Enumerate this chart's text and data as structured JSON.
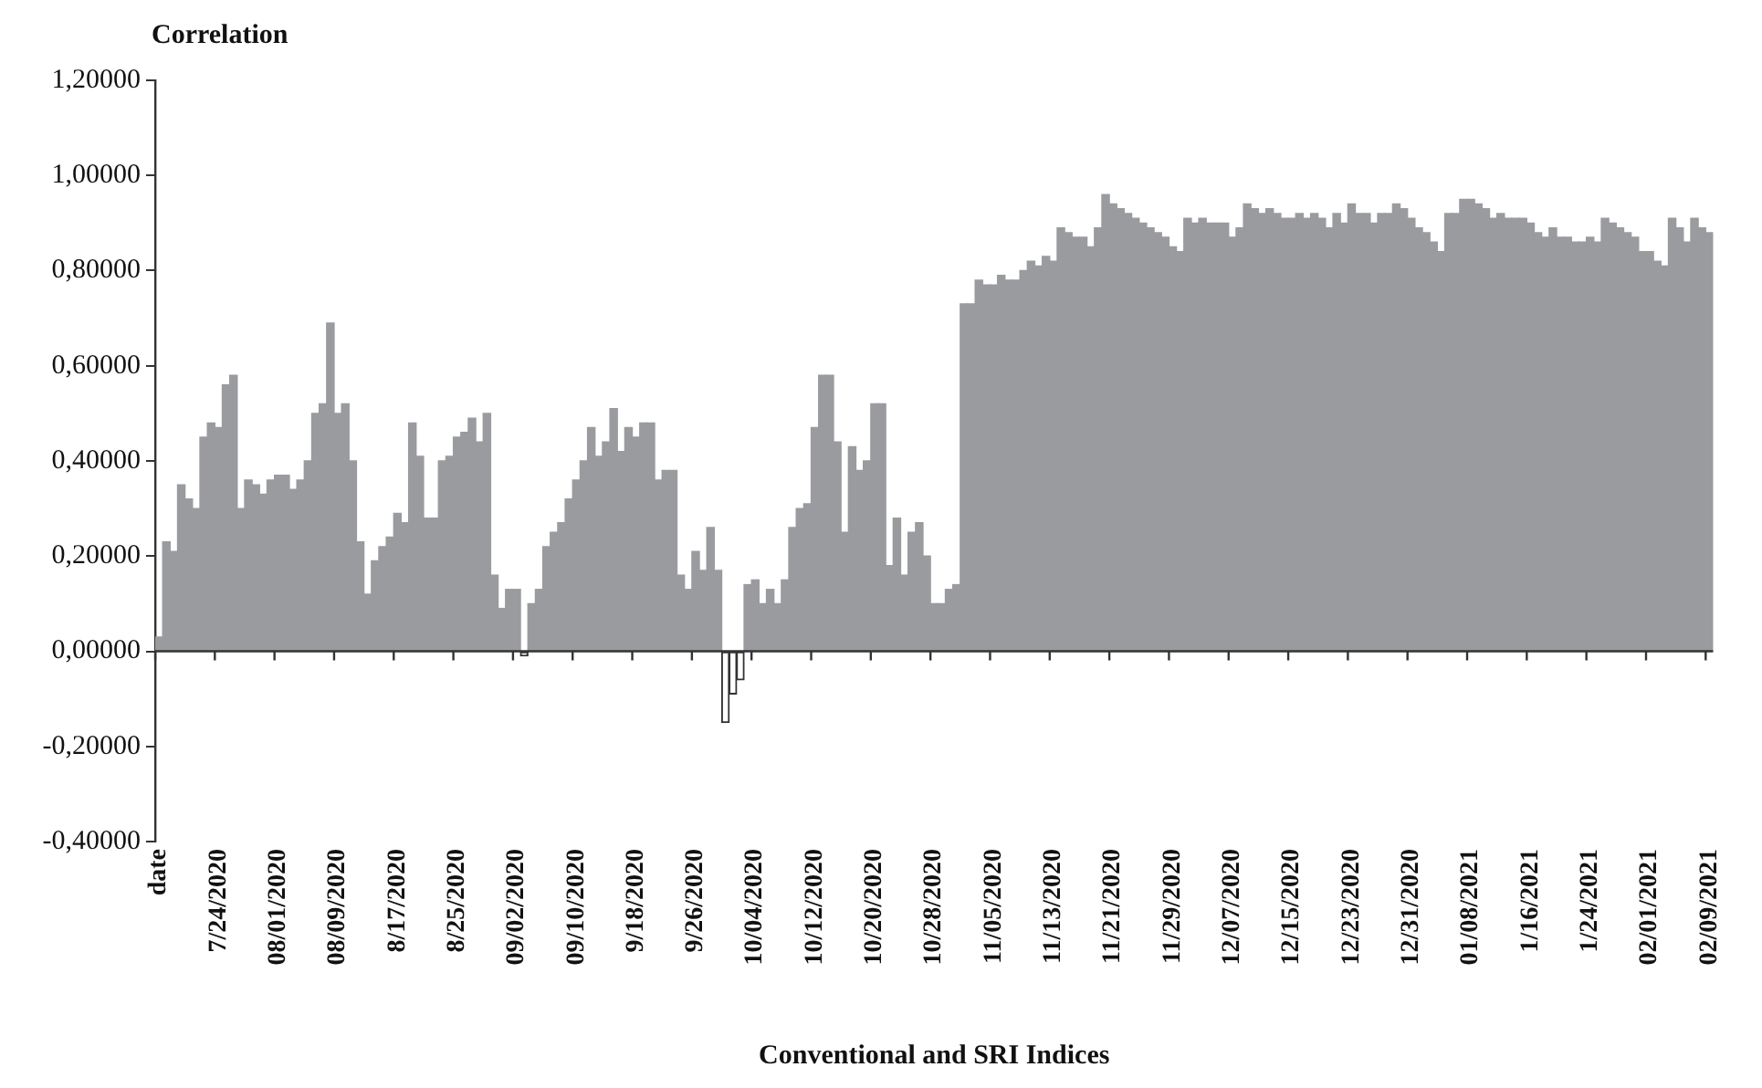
{
  "chart_data": {
    "type": "bar",
    "ylabel": "Correlation",
    "xlabel": "Conventional and SRI Indices",
    "categories": [
      "date",
      null,
      null,
      null,
      null,
      null,
      null,
      null,
      "7/24/2020",
      null,
      null,
      null,
      null,
      null,
      null,
      null,
      "08/01/2020",
      null,
      null,
      null,
      null,
      null,
      null,
      null,
      "08/09/2020",
      null,
      null,
      null,
      null,
      null,
      null,
      null,
      "8/17/2020",
      null,
      null,
      null,
      null,
      null,
      null,
      null,
      "8/25/2020",
      null,
      null,
      null,
      null,
      null,
      null,
      null,
      "09/02/2020",
      null,
      null,
      null,
      null,
      null,
      null,
      null,
      "09/10/2020",
      null,
      null,
      null,
      null,
      null,
      null,
      null,
      "9/18/2020",
      null,
      null,
      null,
      null,
      null,
      null,
      null,
      "9/26/2020",
      null,
      null,
      null,
      null,
      null,
      null,
      null,
      "10/04/2020",
      null,
      null,
      null,
      null,
      null,
      null,
      null,
      "10/12/2020",
      null,
      null,
      null,
      null,
      null,
      null,
      null,
      "10/20/2020",
      null,
      null,
      null,
      null,
      null,
      null,
      null,
      "10/28/2020",
      null,
      null,
      null,
      null,
      null,
      null,
      null,
      "11/05/2020",
      null,
      null,
      null,
      null,
      null,
      null,
      null,
      "11/13/2020",
      null,
      null,
      null,
      null,
      null,
      null,
      null,
      "11/21/2020",
      null,
      null,
      null,
      null,
      null,
      null,
      null,
      "11/29/2020",
      null,
      null,
      null,
      null,
      null,
      null,
      null,
      "12/07/2020",
      null,
      null,
      null,
      null,
      null,
      null,
      null,
      "12/15/2020",
      null,
      null,
      null,
      null,
      null,
      null,
      null,
      "12/23/2020",
      null,
      null,
      null,
      null,
      null,
      null,
      null,
      "12/31/2020",
      null,
      null,
      null,
      null,
      null,
      null,
      null,
      "01/08/2021",
      null,
      null,
      null,
      null,
      null,
      null,
      null,
      "1/16/2021",
      null,
      null,
      null,
      null,
      null,
      null,
      null,
      "1/24/2021",
      null,
      null,
      null,
      null,
      null,
      null,
      null,
      "02/01/2021",
      null,
      null,
      null,
      null,
      null,
      null,
      null,
      "02/09/2021"
    ],
    "values": [
      0.03,
      0.23,
      0.21,
      0.35,
      0.32,
      0.3,
      0.45,
      0.48,
      0.47,
      0.56,
      0.58,
      0.3,
      0.36,
      0.35,
      0.33,
      0.36,
      0.37,
      0.37,
      0.34,
      0.36,
      0.4,
      0.5,
      0.52,
      0.69,
      0.5,
      0.52,
      0.4,
      0.23,
      0.12,
      0.19,
      0.22,
      0.24,
      0.29,
      0.27,
      0.48,
      0.41,
      0.28,
      0.28,
      0.4,
      0.41,
      0.45,
      0.46,
      0.49,
      0.44,
      0.5,
      0.16,
      0.09,
      0.13,
      0.13,
      -0.01,
      0.1,
      0.13,
      0.22,
      0.25,
      0.27,
      0.32,
      0.36,
      0.4,
      0.47,
      0.41,
      0.44,
      0.51,
      0.42,
      0.47,
      0.45,
      0.48,
      0.48,
      0.36,
      0.38,
      0.38,
      0.16,
      0.13,
      0.21,
      0.17,
      0.26,
      0.17,
      -0.15,
      -0.09,
      -0.06,
      0.14,
      0.15,
      0.1,
      0.13,
      0.1,
      0.15,
      0.26,
      0.3,
      0.31,
      0.47,
      0.58,
      0.58,
      0.44,
      0.25,
      0.43,
      0.38,
      0.4,
      0.52,
      0.52,
      0.18,
      0.28,
      0.16,
      0.25,
      0.27,
      0.2,
      0.1,
      0.1,
      0.13,
      0.14,
      0.73,
      0.73,
      0.78,
      0.77,
      0.77,
      0.79,
      0.78,
      0.78,
      0.8,
      0.82,
      0.81,
      0.83,
      0.82,
      0.89,
      0.88,
      0.87,
      0.87,
      0.85,
      0.89,
      0.96,
      0.94,
      0.93,
      0.92,
      0.91,
      0.9,
      0.89,
      0.88,
      0.87,
      0.85,
      0.84,
      0.91,
      0.9,
      0.91,
      0.9,
      0.9,
      0.9,
      0.87,
      0.89,
      0.94,
      0.93,
      0.92,
      0.93,
      0.92,
      0.91,
      0.91,
      0.92,
      0.91,
      0.92,
      0.91,
      0.89,
      0.92,
      0.9,
      0.94,
      0.92,
      0.92,
      0.9,
      0.92,
      0.92,
      0.94,
      0.93,
      0.91,
      0.89,
      0.88,
      0.86,
      0.84,
      0.92,
      0.92,
      0.95,
      0.95,
      0.94,
      0.93,
      0.91,
      0.92,
      0.91,
      0.91,
      0.91,
      0.9,
      0.88,
      0.87,
      0.89,
      0.87,
      0.87,
      0.86,
      0.86,
      0.87,
      0.86,
      0.91,
      0.9,
      0.89,
      0.88,
      0.87,
      0.84,
      0.84,
      0.82,
      0.81,
      0.91,
      0.89,
      0.86,
      0.91,
      0.89,
      0.88
    ],
    "colors": [
      "#9a9b9f",
      "#9a9b9f",
      "#9a9b9f",
      "#9a9b9f",
      "#9a9b9f",
      "#9a9b9f",
      "#9a9b9f",
      "#9a9b9f",
      "#9a9b9f",
      "#9a9b9f",
      "#9a9b9f",
      "#9a9b9f",
      "#9a9b9f",
      "#9a9b9f",
      "#9a9b9f",
      "#9a9b9f",
      "#9a9b9f",
      "#9a9b9f",
      "#9a9b9f",
      "#9a9b9f",
      "#9a9b9f",
      "#9a9b9f",
      "#9a9b9f",
      "#9a9b9f",
      "#9a9b9f",
      "#9a9b9f",
      "#9a9b9f",
      "#9a9b9f",
      "#9a9b9f",
      "#9a9b9f",
      "#9a9b9f",
      "#9a9b9f",
      "#9a9b9f",
      "#9a9b9f",
      "#9a9b9f",
      "#9a9b9f",
      "#9a9b9f",
      "#9a9b9f",
      "#9a9b9f",
      "#9a9b9f",
      "#9a9b9f",
      "#9a9b9f",
      "#9a9b9f",
      "#9a9b9f",
      "#9a9b9f",
      "#9a9b9f",
      "#9a9b9f",
      "#9a9b9f",
      "#9a9b9f",
      "#ffffff",
      "#9a9b9f",
      "#9a9b9f",
      "#9a9b9f",
      "#9a9b9f",
      "#9a9b9f",
      "#9a9b9f",
      "#9a9b9f",
      "#9a9b9f",
      "#9a9b9f",
      "#9a9b9f",
      "#9a9b9f",
      "#9a9b9f",
      "#9a9b9f",
      "#9a9b9f",
      "#9a9b9f",
      "#9a9b9f",
      "#9a9b9f",
      "#9a9b9f",
      "#9a9b9f",
      "#9a9b9f",
      "#9a9b9f",
      "#9a9b9f",
      "#9a9b9f",
      "#9a9b9f",
      "#9a9b9f",
      "#9a9b9f",
      "#ffffff",
      "#ffffff",
      "#ffffff",
      "#9a9b9f",
      "#9a9b9f",
      "#9a9b9f",
      "#9a9b9f",
      "#9a9b9f",
      "#9a9b9f",
      "#9a9b9f",
      "#9a9b9f",
      "#9a9b9f",
      "#9a9b9f",
      "#9a9b9f",
      "#9a9b9f",
      "#9a9b9f",
      "#9a9b9f",
      "#9a9b9f",
      "#9a9b9f",
      "#9a9b9f",
      "#9a9b9f",
      "#9a9b9f",
      "#9a9b9f",
      "#9a9b9f",
      "#9a9b9f",
      "#9a9b9f",
      "#9a9b9f",
      "#9a9b9f",
      "#9a9b9f",
      "#9a9b9f",
      "#9a9b9f",
      "#9a9b9f",
      "#9a9b9f",
      "#9a9b9f",
      "#9a9b9f",
      "#9a9b9f",
      "#9a9b9f",
      "#9a9b9f",
      "#9a9b9f",
      "#9a9b9f",
      "#9a9b9f",
      "#9a9b9f",
      "#9a9b9f",
      "#9a9b9f",
      "#9a9b9f",
      "#9a9b9f",
      "#9a9b9f",
      "#9a9b9f",
      "#9a9b9f",
      "#9a9b9f",
      "#9a9b9f",
      "#9a9b9f",
      "#9a9b9f",
      "#9a9b9f",
      "#9a9b9f",
      "#9a9b9f",
      "#9a9b9f",
      "#9a9b9f",
      "#9a9b9f",
      "#9a9b9f",
      "#9a9b9f",
      "#9a9b9f",
      "#9a9b9f",
      "#9a9b9f",
      "#9a9b9f",
      "#9a9b9f",
      "#9a9b9f",
      "#9a9b9f",
      "#9a9b9f",
      "#9a9b9f",
      "#9a9b9f",
      "#9a9b9f",
      "#9a9b9f",
      "#9a9b9f",
      "#9a9b9f",
      "#9a9b9f",
      "#9a9b9f",
      "#9a9b9f",
      "#9a9b9f",
      "#9a9b9f",
      "#9a9b9f",
      "#9a9b9f",
      "#9a9b9f",
      "#9a9b9f",
      "#9a9b9f",
      "#9a9b9f",
      "#9a9b9f",
      "#9a9b9f",
      "#9a9b9f",
      "#9a9b9f",
      "#9a9b9f",
      "#9a9b9f",
      "#9a9b9f",
      "#9a9b9f",
      "#9a9b9f",
      "#9a9b9f",
      "#9a9b9f",
      "#9a9b9f",
      "#9a9b9f",
      "#9a9b9f",
      "#9a9b9f",
      "#9a9b9f",
      "#9a9b9f",
      "#9a9b9f",
      "#9a9b9f",
      "#9a9b9f",
      "#9a9b9f",
      "#9a9b9f",
      "#9a9b9f",
      "#9a9b9f",
      "#9a9b9f",
      "#9a9b9f",
      "#9a9b9f",
      "#9a9b9f",
      "#9a9b9f",
      "#9a9b9f",
      "#9a9b9f",
      "#9a9b9f",
      "#9a9b9f",
      "#9a9b9f",
      "#9a9b9f",
      "#9a9b9f",
      "#9a9b9f",
      "#9a9b9f",
      "#9a9b9f",
      "#9a9b9f",
      "#9a9b9f",
      "#9a9b9f",
      "#9a9b9f",
      "#9a9b9f",
      "#9a9b9f",
      "#9a9b9f",
      "#9a9b9f"
    ],
    "ylim": [
      -0.4,
      1.2
    ],
    "yticks": [
      {
        "value": -0.4,
        "label": "-0,40000"
      },
      {
        "value": -0.2,
        "label": "-0,20000"
      },
      {
        "value": 0,
        "label": "0,00000"
      },
      {
        "value": 0.2,
        "label": "0,20000"
      },
      {
        "value": 0.4,
        "label": "0,40000"
      },
      {
        "value": 0.6,
        "label": "0,60000"
      },
      {
        "value": 0.8,
        "label": "0,80000"
      },
      {
        "value": 1.0,
        "label": "1,00000"
      },
      {
        "value": 1.2,
        "label": "1,20000"
      }
    ]
  }
}
